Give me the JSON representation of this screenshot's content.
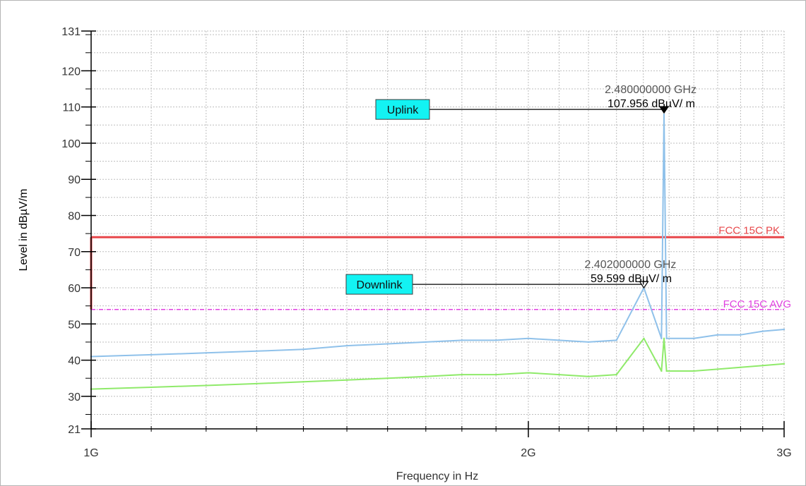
{
  "chart_data": {
    "type": "line",
    "xlabel": "Frequency in Hz",
    "ylabel": "Level in dBµV/m",
    "xlim": [
      1000000000,
      3000000000
    ],
    "ylim": [
      21,
      131
    ],
    "x_scale": "log",
    "grid": true,
    "yticks": [
      21,
      30,
      40,
      50,
      60,
      70,
      80,
      90,
      100,
      110,
      120,
      131
    ],
    "xticks": [
      {
        "value": 1000000000,
        "label": "1G"
      },
      {
        "value": 2000000000,
        "label": "2G"
      },
      {
        "value": 3000000000,
        "label": "3G"
      }
    ],
    "limit_lines": [
      {
        "name": "FCC 15C PK",
        "value": 74,
        "color": "#e8474a"
      },
      {
        "name": "FCC 15C AVG",
        "value": 54,
        "color": "#e040e0"
      }
    ],
    "series": [
      {
        "color": "#8fc1ea",
        "x": [
          1000000000,
          1100000000,
          1200000000,
          1300000000,
          1400000000,
          1500000000,
          1600000000,
          1700000000,
          1800000000,
          1900000000,
          2000000000,
          2100000000,
          2200000000,
          2300000000,
          2402000000,
          2470000000,
          2480000000,
          2490000000,
          2600000000,
          2700000000,
          2800000000,
          2900000000,
          3000000000
        ],
        "values": [
          41,
          41.5,
          42,
          42.5,
          43,
          44,
          44.5,
          45,
          45.5,
          45.5,
          46,
          45.5,
          45,
          45.5,
          60,
          46,
          107.956,
          46,
          46,
          47,
          47,
          48,
          48.5
        ]
      },
      {
        "color": "#8fea6a",
        "x": [
          1000000000,
          1100000000,
          1200000000,
          1300000000,
          1400000000,
          1500000000,
          1600000000,
          1700000000,
          1800000000,
          1900000000,
          2000000000,
          2100000000,
          2200000000,
          2300000000,
          2402000000,
          2470000000,
          2480000000,
          2490000000,
          2600000000,
          2700000000,
          2800000000,
          2900000000,
          3000000000
        ],
        "values": [
          32,
          32.5,
          33,
          33.5,
          34,
          34.5,
          35,
          35.5,
          36,
          36,
          36.5,
          36,
          35.5,
          36,
          46,
          37,
          46,
          37,
          37,
          37.5,
          38,
          38.5,
          39
        ]
      }
    ],
    "markers": [
      {
        "label": "Uplink",
        "frequency": "2.480000000 GHz",
        "level": "107.956 dBµV/ m",
        "x": 2480000000,
        "y": 107.956,
        "filled": true
      },
      {
        "label": "Downlink",
        "frequency": "2.402000000 GHz",
        "level": "59.599 dBµV/ m",
        "x": 2402000000,
        "y": 59.599,
        "filled": false
      }
    ]
  }
}
